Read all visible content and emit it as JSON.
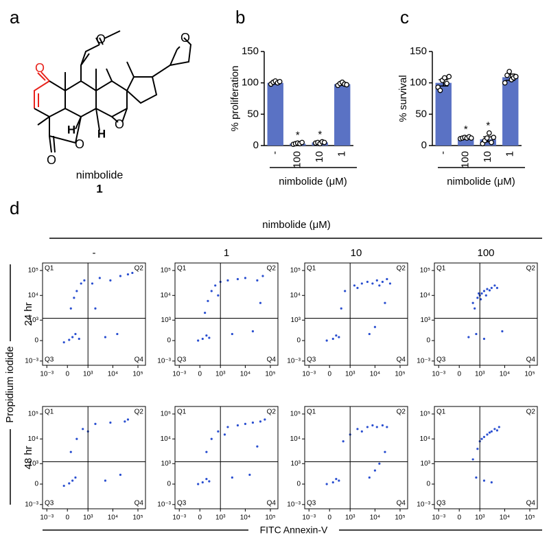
{
  "panel_labels": [
    "a",
    "b",
    "c",
    "d"
  ],
  "structure": {
    "name": "nimbolide",
    "number": "1",
    "atom_labels": [
      "O",
      "O",
      "O",
      "O",
      "O",
      "O",
      "H",
      "H"
    ]
  },
  "chart_data": [
    {
      "type": "bar",
      "ylabel": "% proliferation",
      "xlabel": "nimbolide (μM)",
      "categories": [
        "-",
        "100",
        "10",
        "1"
      ],
      "values": [
        100,
        3,
        5,
        98
      ],
      "errors": [
        2,
        1,
        1,
        2
      ],
      "points": [
        [
          98,
          101,
          103,
          100,
          102
        ],
        [
          2,
          3,
          4,
          3,
          5
        ],
        [
          4,
          5,
          3,
          6,
          5
        ],
        [
          96,
          99,
          101,
          98,
          97
        ]
      ],
      "significance": [
        null,
        "*",
        "*",
        null
      ],
      "color": "#5a72c4",
      "ylim": [
        0,
        150
      ],
      "yticks": [
        0,
        50,
        100,
        150
      ]
    },
    {
      "type": "bar",
      "ylabel": "% survival",
      "xlabel": "nimbolide (μM)",
      "categories": [
        "-",
        "100",
        "10",
        "1"
      ],
      "values": [
        100,
        12,
        10,
        109
      ],
      "errors": [
        5,
        1,
        4,
        5
      ],
      "points": [
        [
          93,
          88,
          104,
          108,
          99,
          110
        ],
        [
          11,
          12,
          13,
          12,
          14,
          12
        ],
        [
          3,
          8,
          12,
          20,
          5,
          13
        ],
        [
          100,
          112,
          118,
          105,
          108,
          110
        ]
      ],
      "significance": [
        null,
        "*",
        "*",
        null
      ],
      "color": "#5a72c4",
      "ylim": [
        0,
        150
      ],
      "yticks": [
        0,
        50,
        100,
        150
      ]
    },
    {
      "type": "flow",
      "title": "nimbolide (μM)",
      "columns": [
        "-",
        "1",
        "10",
        "100"
      ],
      "rows": [
        "24 hr",
        "48 hr"
      ],
      "xlabel": "FITC Annexin-V",
      "ylabel": "Propidium iodide",
      "quadrants": [
        "Q1",
        "Q2",
        "Q3",
        "Q4"
      ],
      "scale": "biexponential",
      "color": "#2a4fd0",
      "xlim": [
        -1500,
        200000
      ],
      "ylim": [
        -1500,
        200000
      ],
      "xticks": [
        {
          "value": -1000,
          "label": "10⁻³"
        },
        0,
        {
          "value": 1000,
          "label": "10³"
        },
        {
          "value": 10000,
          "label": "10⁴"
        },
        {
          "value": 100000,
          "label": "10⁵"
        }
      ],
      "yticks": [
        {
          "value": -1000,
          "label": "10⁻³"
        },
        0,
        {
          "value": 1000,
          "label": "10³"
        },
        {
          "value": 10000,
          "label": "10⁴"
        },
        {
          "value": 100000,
          "label": "10⁵"
        }
      ],
      "gate": {
        "x": 1000,
        "y": 1200
      },
      "plots": [
        [
          {
            "x": [
              50,
              150,
              -100,
              250,
              400,
              100,
              200,
              300,
              500,
              700,
              1500,
              3000,
              8000,
              20000,
              40000,
              5000,
              15000,
              2000,
              60000
            ],
            "y": [
              20,
              100,
              -50,
              200,
              50,
              3000,
              8000,
              15000,
              30000,
              40000,
              30000,
              50000,
              40000,
              60000,
              70000,
              100,
              200,
              3000,
              80000
            ]
          },
          {
            "x": [
              80,
              200,
              -50,
              300,
              150,
              250,
              400,
              600,
              1000,
              2000,
              5000,
              10000,
              30000,
              50000,
              3000,
              20000,
              800,
              40000
            ],
            "y": [
              50,
              150,
              0,
              80,
              2000,
              6000,
              15000,
              25000,
              35000,
              40000,
              45000,
              50000,
              40000,
              60000,
              200,
              300,
              10000,
              5000
            ]
          },
          {
            "x": [
              100,
              200,
              -80,
              300,
              400,
              600,
              1500,
              3000,
              5000,
              8000,
              12000,
              20000,
              30000,
              40000,
              6000,
              10000,
              25000,
              2000,
              15000
            ],
            "y": [
              50,
              150,
              0,
              100,
              3000,
              15000,
              25000,
              30000,
              35000,
              30000,
              40000,
              35000,
              45000,
              30000,
              200,
              500,
              5000,
              20000,
              25000
            ]
          },
          {
            "x": [
              500,
              800,
              1000,
              1200,
              1500,
              2000,
              3000,
              4000,
              600,
              900,
              1100,
              1800,
              2500,
              5000,
              700,
              300,
              1500,
              8000
            ],
            "y": [
              5000,
              8000,
              10000,
              12000,
              15000,
              18000,
              20000,
              25000,
              3000,
              12000,
              7000,
              10000,
              16000,
              20000,
              200,
              100,
              50,
              300
            ]
          }
        ],
        [
          {
            "x": [
              50,
              150,
              -100,
              250,
              100,
              300,
              600,
              2000,
              8000,
              30000,
              5000,
              20000,
              1000,
              40000
            ],
            "y": [
              20,
              100,
              -50,
              200,
              3000,
              10000,
              25000,
              40000,
              45000,
              50000,
              100,
              300,
              20000,
              60000
            ]
          },
          {
            "x": [
              80,
              200,
              -50,
              300,
              200,
              400,
              800,
              2000,
              5000,
              10000,
              20000,
              40000,
              60000,
              3000,
              15000,
              30000,
              1500
            ],
            "y": [
              50,
              150,
              0,
              80,
              3000,
              10000,
              20000,
              30000,
              35000,
              40000,
              45000,
              50000,
              60000,
              200,
              300,
              5000,
              15000
            ]
          },
          {
            "x": [
              100,
              200,
              -80,
              300,
              500,
              2000,
              5000,
              8000,
              12000,
              20000,
              30000,
              6000,
              10000,
              25000,
              3000,
              15000,
              1000
            ],
            "y": [
              50,
              150,
              0,
              100,
              8000,
              25000,
              30000,
              35000,
              30000,
              35000,
              30000,
              200,
              500,
              3000,
              20000,
              1000,
              15000
            ]
          },
          {
            "x": [
              1000,
              1500,
              2000,
              3000,
              4000,
              5000,
              800,
              1200,
              2500,
              6000,
              700,
              1500,
              3000,
              500
            ],
            "y": [
              8000,
              12000,
              15000,
              20000,
              25000,
              22000,
              4000,
              10000,
              18000,
              30000,
              200,
              100,
              50,
              1500
            ]
          }
        ]
      ]
    }
  ]
}
